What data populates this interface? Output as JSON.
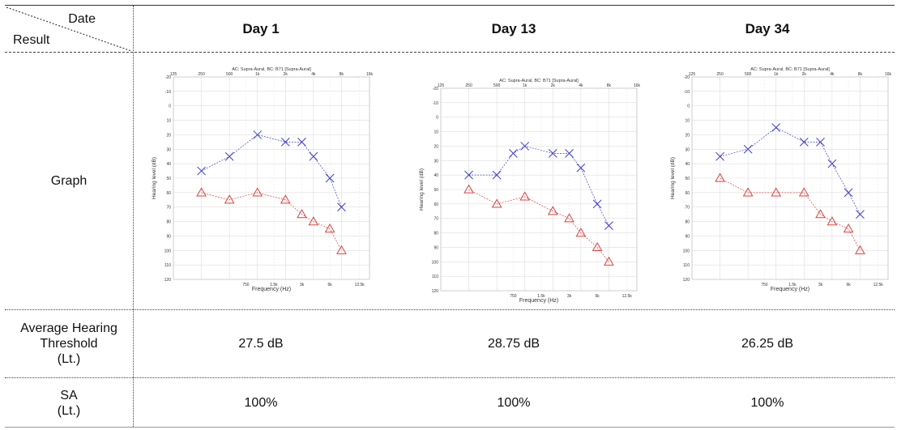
{
  "table": {
    "corner": {
      "top_right": "Date",
      "bottom_left": "Result"
    },
    "columns": [
      "Day 1",
      "Day 13",
      "Day 34"
    ],
    "row_labels": {
      "graph": "Graph",
      "average": [
        "Average Hearing",
        "Threshold",
        "(Lt.)"
      ],
      "sa": [
        "SA",
        "(Lt.)"
      ]
    },
    "average_values": [
      "27.5 dB",
      "28.75 dB",
      "26.25 dB"
    ],
    "sa_values": [
      "100%",
      "100%",
      "100%"
    ]
  },
  "chart_data": [
    {
      "type": "line",
      "title": "AC: Supra-Aural, BC: B71 [Supra-Aural]",
      "xlabel": "Frequency (Hz)",
      "ylabel": "Hearing level (dB)",
      "x_top_ticks": [
        "125",
        "250",
        "500",
        "1k",
        "2k",
        "4k",
        "8k",
        "16k"
      ],
      "x_bottom_ticks": [
        "750",
        "1.5k",
        "3k",
        "6k",
        "12.5k"
      ],
      "y_ticks": [
        "-20",
        "-10",
        "0",
        "10",
        "20",
        "30",
        "40",
        "50",
        "60",
        "70",
        "80",
        "90",
        "100",
        "110",
        "120"
      ],
      "ylim": [
        -20,
        120
      ],
      "series": [
        {
          "x": [
            250,
            500,
            1000,
            2000,
            3000,
            4000,
            6000,
            8000
          ],
          "values": [
            45,
            35,
            20,
            25,
            25,
            35,
            50,
            70
          ]
        },
        {
          "x": [
            250,
            500,
            1000,
            2000,
            3000,
            4000,
            6000,
            8000
          ],
          "values": [
            60,
            65,
            60,
            65,
            75,
            80,
            85,
            100
          ]
        }
      ]
    },
    {
      "type": "line",
      "title": "AC: Supra-Aural, BC: B71 [Supra-Aural]",
      "xlabel": "Frequency (Hz)",
      "ylabel": "Hearing level (dB)",
      "x_top_ticks": [
        "125",
        "250",
        "500",
        "1k",
        "2k",
        "4k",
        "8k",
        "16k"
      ],
      "x_bottom_ticks": [
        "750",
        "1.5k",
        "3k",
        "6k",
        "12.5k"
      ],
      "y_ticks": [
        "-20",
        "-10",
        "0",
        "10",
        "20",
        "30",
        "40",
        "50",
        "60",
        "70",
        "80",
        "90",
        "100",
        "110",
        "120"
      ],
      "ylim": [
        -20,
        120
      ],
      "series": [
        {
          "x": [
            250,
            500,
            750,
            1000,
            2000,
            3000,
            4000,
            6000,
            8000
          ],
          "values": [
            40,
            40,
            25,
            20,
            25,
            25,
            35,
            60,
            75
          ]
        },
        {
          "x": [
            250,
            500,
            1000,
            2000,
            3000,
            4000,
            6000,
            8000
          ],
          "values": [
            50,
            60,
            55,
            65,
            70,
            80,
            90,
            100
          ]
        }
      ]
    },
    {
      "type": "line",
      "title": "AC: Supra-Aural, BC: B71 [Supra-Aural]",
      "xlabel": "Frequency (Hz)",
      "ylabel": "Hearing level (dB)",
      "x_top_ticks": [
        "125",
        "250",
        "500",
        "1k",
        "2k",
        "4k",
        "8k",
        "16k"
      ],
      "x_bottom_ticks": [
        "750",
        "1.5k",
        "3k",
        "6k",
        "12.5k"
      ],
      "y_ticks": [
        "-20",
        "-10",
        "0",
        "10",
        "20",
        "30",
        "40",
        "50",
        "60",
        "70",
        "80",
        "90",
        "100",
        "110",
        "120"
      ],
      "ylim": [
        -20,
        120
      ],
      "series": [
        {
          "x": [
            250,
            500,
            1000,
            2000,
            3000,
            4000,
            6000,
            8000
          ],
          "values": [
            35,
            30,
            15,
            25,
            25,
            40,
            60,
            75
          ]
        },
        {
          "x": [
            250,
            500,
            1000,
            2000,
            3000,
            4000,
            6000,
            8000
          ],
          "values": [
            50,
            60,
            60,
            60,
            75,
            80,
            85,
            100
          ]
        }
      ]
    }
  ],
  "colors": {
    "right_ear": "#d94444",
    "left_ear": "#4040c8",
    "grid": "#dddddd"
  }
}
